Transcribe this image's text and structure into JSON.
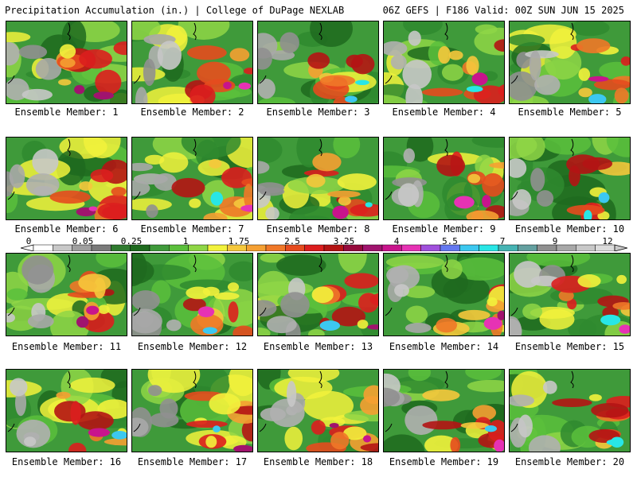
{
  "header": {
    "title": "Precipitation Accumulation (in.) | College of DuPage NEXLAB",
    "run_info": "06Z GEFS | F186 Valid: 00Z SUN JUN 15 2025"
  },
  "panels": [
    {
      "label": "Ensemble Member: 1"
    },
    {
      "label": "Ensemble Member: 2"
    },
    {
      "label": "Ensemble Member: 3"
    },
    {
      "label": "Ensemble Member: 4"
    },
    {
      "label": "Ensemble Member: 5"
    },
    {
      "label": "Ensemble Member: 6"
    },
    {
      "label": "Ensemble Member: 7"
    },
    {
      "label": "Ensemble Member: 8"
    },
    {
      "label": "Ensemble Member: 9"
    },
    {
      "label": "Ensemble Member: 10"
    },
    {
      "label": "Ensemble Member: 11"
    },
    {
      "label": "Ensemble Member: 12"
    },
    {
      "label": "Ensemble Member: 13"
    },
    {
      "label": "Ensemble Member: 14"
    },
    {
      "label": "Ensemble Member: 15"
    },
    {
      "label": "Ensemble Member: 16"
    },
    {
      "label": "Ensemble Member: 17"
    },
    {
      "label": "Ensemble Member: 18"
    },
    {
      "label": "Ensemble Member: 19"
    },
    {
      "label": "Ensemble Member: 20"
    }
  ],
  "colorbar": {
    "labels": [
      "0",
      "0.05",
      "0.25",
      "1",
      "1.75",
      "2.5",
      "3.25",
      "4",
      "5.5",
      "7",
      "9",
      "12"
    ],
    "colors": [
      "#ffffff",
      "#c8c8c8",
      "#a0a0a0",
      "#7a7a7a",
      "#2f7a2f",
      "#1e6a1e",
      "#3f9a3a",
      "#5bbf3c",
      "#8fd646",
      "#f2f23c",
      "#f5c83c",
      "#f5a032",
      "#f07828",
      "#e64b1e",
      "#dc1e1e",
      "#b41414",
      "#960a3c",
      "#a0146e",
      "#c8148c",
      "#e632b4",
      "#a050dc",
      "#6478f0",
      "#3cc8f0",
      "#28e6e6",
      "#46b4b4",
      "#64a0a0",
      "#909090",
      "#a8a8a8",
      "#c8c8c8",
      "#dcdcdc"
    ]
  }
}
